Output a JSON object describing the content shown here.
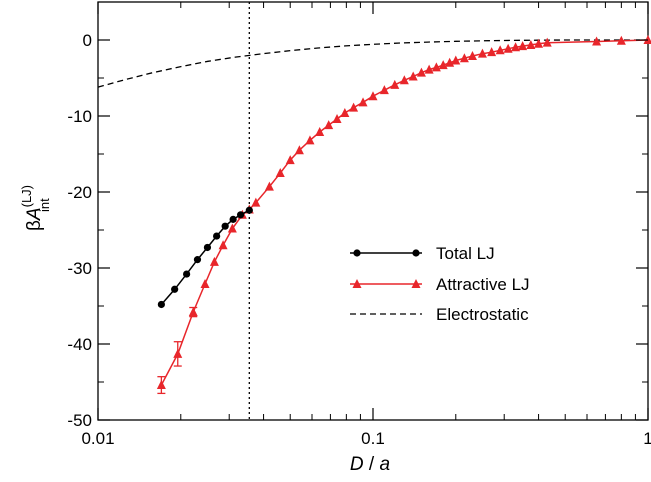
{
  "chart_data": {
    "type": "line",
    "xscale": "log",
    "xlim": [
      0.01,
      1
    ],
    "ylim": [
      -50,
      5
    ],
    "grid": false,
    "legend_position": "center-right",
    "xlabel": {
      "italic_1": "D",
      "sep": " / ",
      "italic_2": "a"
    },
    "ylabel": {
      "beta": "β",
      "A": "A",
      "sup": "(LJ)",
      "sub": "int"
    },
    "x_ticks": [
      {
        "value": 0.01,
        "label": "0.01"
      },
      {
        "value": 0.1,
        "label": "0.1"
      },
      {
        "value": 1,
        "label": "1"
      }
    ],
    "y_ticks": [
      {
        "value": 0,
        "label": "0"
      },
      {
        "value": -10,
        "label": "-10"
      },
      {
        "value": -20,
        "label": "-20"
      },
      {
        "value": -30,
        "label": "-30"
      },
      {
        "value": -40,
        "label": "-40"
      },
      {
        "value": -50,
        "label": "-50"
      }
    ],
    "reference_line_x": 0.0355,
    "series": [
      {
        "name": "Total LJ",
        "color": "#000000",
        "marker": "circle",
        "line": "solid",
        "x": [
          0.017,
          0.019,
          0.021,
          0.023,
          0.025,
          0.027,
          0.029,
          0.031,
          0.033,
          0.0355
        ],
        "y": [
          -34.8,
          -32.8,
          -30.8,
          -28.9,
          -27.3,
          -25.8,
          -24.5,
          -23.6,
          -23.0,
          -22.4
        ]
      },
      {
        "name": "Attractive LJ",
        "color": "#e8262b",
        "marker": "triangle",
        "line": "solid",
        "x": [
          0.017,
          0.0195,
          0.0222,
          0.0245,
          0.0265,
          0.0285,
          0.0308,
          0.0335,
          0.0355,
          0.0375,
          0.042,
          0.046,
          0.05,
          0.054,
          0.059,
          0.064,
          0.069,
          0.074,
          0.079,
          0.085,
          0.092,
          0.1,
          0.11,
          0.12,
          0.13,
          0.14,
          0.15,
          0.16,
          0.17,
          0.18,
          0.19,
          0.2,
          0.215,
          0.23,
          0.25,
          0.27,
          0.29,
          0.31,
          0.33,
          0.35,
          0.375,
          0.4,
          0.43,
          0.65,
          0.8,
          1.0
        ],
        "y": [
          -45.4,
          -41.3,
          -35.8,
          -32.1,
          -29.2,
          -27.0,
          -24.8,
          -23.0,
          -22.3,
          -21.4,
          -19.3,
          -17.5,
          -15.8,
          -14.5,
          -13.2,
          -12.1,
          -11.2,
          -10.4,
          -9.6,
          -8.9,
          -8.2,
          -7.4,
          -6.6,
          -5.9,
          -5.3,
          -4.8,
          -4.3,
          -3.9,
          -3.6,
          -3.3,
          -3.0,
          -2.7,
          -2.4,
          -2.1,
          -1.8,
          -1.6,
          -1.35,
          -1.15,
          -0.95,
          -0.8,
          -0.65,
          -0.5,
          -0.35,
          -0.2,
          -0.1,
          0.0
        ],
        "error_bars": [
          {
            "x": 0.017,
            "err": 1.1
          },
          {
            "x": 0.0195,
            "err": 1.6
          },
          {
            "x": 0.0222,
            "err": 0.6
          }
        ]
      },
      {
        "name": "Electrostatic",
        "color": "#000000",
        "marker": "none",
        "line": "dashed",
        "x": [
          0.01,
          0.0126,
          0.0158,
          0.02,
          0.0251,
          0.0316,
          0.0398,
          0.0501,
          0.0631,
          0.0794,
          0.1,
          0.126,
          0.158,
          0.2,
          0.251,
          0.316,
          0.398,
          0.501,
          0.631,
          0.794,
          1.0
        ],
        "y": [
          -6.2,
          -5.2,
          -4.3,
          -3.5,
          -2.8,
          -2.25,
          -1.8,
          -1.4,
          -1.05,
          -0.78,
          -0.57,
          -0.4,
          -0.27,
          -0.17,
          -0.1,
          -0.05,
          -0.02,
          -0.005,
          0.0,
          0.0,
          0.0
        ]
      }
    ]
  }
}
